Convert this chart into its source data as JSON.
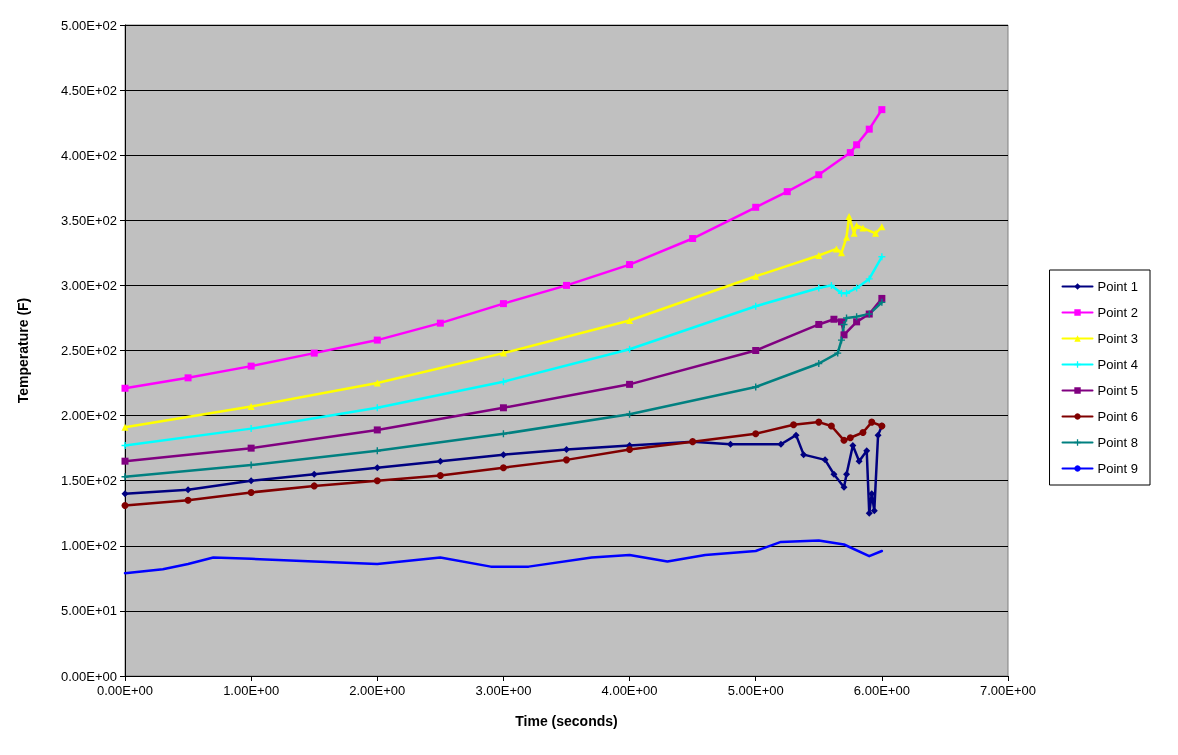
{
  "chart_data": {
    "type": "line",
    "xlabel": "Time (seconds)",
    "ylabel": "Temperature (F)",
    "xlim": [
      0,
      7
    ],
    "ylim": [
      0,
      500
    ],
    "xticks": [
      {
        "value": 0,
        "label": "0.00E+00"
      },
      {
        "value": 1,
        "label": "1.00E+00"
      },
      {
        "value": 2,
        "label": "2.00E+00"
      },
      {
        "value": 3,
        "label": "3.00E+00"
      },
      {
        "value": 4,
        "label": "4.00E+00"
      },
      {
        "value": 5,
        "label": "5.00E+00"
      },
      {
        "value": 6,
        "label": "6.00E+00"
      },
      {
        "value": 7,
        "label": "7.00E+00"
      }
    ],
    "yticks": [
      {
        "value": 0,
        "label": "0.00E+00"
      },
      {
        "value": 50,
        "label": "5.00E+01"
      },
      {
        "value": 100,
        "label": "1.00E+02"
      },
      {
        "value": 150,
        "label": "1.50E+02"
      },
      {
        "value": 200,
        "label": "2.00E+02"
      },
      {
        "value": 250,
        "label": "2.50E+02"
      },
      {
        "value": 300,
        "label": "3.00E+02"
      },
      {
        "value": 350,
        "label": "3.50E+02"
      },
      {
        "value": 400,
        "label": "4.00E+02"
      },
      {
        "value": 450,
        "label": "4.50E+02"
      },
      {
        "value": 500,
        "label": "5.00E+02"
      }
    ],
    "grid": "y",
    "legend": "right",
    "line_style": "solid",
    "series": [
      {
        "name": "Point 1",
        "color": "#000080",
        "marker": "diamond",
        "x": [
          0,
          0.5,
          1,
          1.5,
          2,
          2.5,
          3,
          3.5,
          4,
          4.5,
          4.8,
          5.2,
          5.32,
          5.38,
          5.55,
          5.62,
          5.7,
          5.72,
          5.77,
          5.82,
          5.88,
          5.9,
          5.92,
          5.94,
          5.97,
          6.0
        ],
        "values": [
          140,
          143,
          150,
          155,
          160,
          165,
          170,
          174,
          177,
          180,
          178,
          178,
          185,
          170,
          166,
          155,
          145,
          155,
          177,
          165,
          173,
          125,
          140,
          127,
          185,
          192
        ]
      },
      {
        "name": "Point 2",
        "color": "#ff00ff",
        "marker": "square",
        "x": [
          0,
          0.5,
          1,
          1.5,
          2,
          2.5,
          3,
          3.5,
          4,
          4.5,
          5,
          5.25,
          5.5,
          5.75,
          5.8,
          5.9,
          6.0
        ],
        "values": [
          221,
          229,
          238,
          248,
          258,
          271,
          286,
          300,
          316,
          336,
          360,
          372,
          385,
          402,
          408,
          420,
          435
        ]
      },
      {
        "name": "Point 3",
        "color": "#ffff00",
        "marker": "triangle",
        "x": [
          0,
          1,
          2,
          3,
          4,
          5,
          5.5,
          5.64,
          5.68,
          5.72,
          5.74,
          5.78,
          5.8,
          5.85,
          5.95,
          6.0
        ],
        "values": [
          191,
          207,
          225,
          248,
          273,
          307,
          323,
          328,
          325,
          337,
          353,
          340,
          346,
          344,
          340,
          345
        ]
      },
      {
        "name": "Point 4",
        "color": "#00ffff",
        "marker": "cross",
        "x": [
          0,
          1,
          2,
          3,
          4,
          5,
          5.5,
          5.6,
          5.68,
          5.72,
          5.8,
          5.9,
          6.0
        ],
        "values": [
          177,
          190,
          206,
          226,
          251,
          284,
          298,
          300,
          294,
          294,
          298,
          305,
          322
        ]
      },
      {
        "name": "Point 5",
        "color": "#800080",
        "marker": "square",
        "x": [
          0,
          1,
          2,
          3,
          4,
          5,
          5.5,
          5.62,
          5.68,
          5.7,
          5.8,
          5.9,
          6.0
        ],
        "values": [
          165,
          175,
          189,
          206,
          224,
          250,
          270,
          274,
          272,
          262,
          272,
          278,
          290
        ]
      },
      {
        "name": "Point 6",
        "color": "#800000",
        "marker": "circle",
        "x": [
          0,
          0.5,
          1,
          1.5,
          2,
          2.5,
          3,
          3.5,
          4,
          4.5,
          5,
          5.3,
          5.5,
          5.6,
          5.7,
          5.75,
          5.85,
          5.92,
          6.0
        ],
        "values": [
          131,
          135,
          141,
          146,
          150,
          154,
          160,
          166,
          174,
          180,
          186,
          193,
          195,
          192,
          181,
          183,
          187,
          195,
          192
        ]
      },
      {
        "name": "Point 8",
        "color": "#008080",
        "marker": "cross",
        "x": [
          0,
          1,
          2,
          3,
          4,
          5,
          5.5,
          5.65,
          5.68,
          5.7,
          5.72,
          5.8,
          5.9,
          6.0
        ],
        "values": [
          153,
          162,
          173,
          186,
          201,
          222,
          240,
          248,
          258,
          270,
          275,
          276,
          278,
          287
        ]
      },
      {
        "name": "Point 9",
        "color": "#0000ff",
        "marker": "none",
        "x": [
          0,
          0.3,
          0.5,
          0.7,
          1,
          1.5,
          2,
          2.5,
          2.9,
          3.2,
          3.7,
          4,
          4.3,
          4.6,
          5,
          5.2,
          5.5,
          5.7,
          5.9,
          6.0
        ],
        "values": [
          79,
          82,
          86,
          91,
          90,
          88,
          86,
          91,
          84,
          84,
          91,
          93,
          88,
          93,
          96,
          103,
          104,
          101,
          92,
          96
        ]
      }
    ]
  }
}
